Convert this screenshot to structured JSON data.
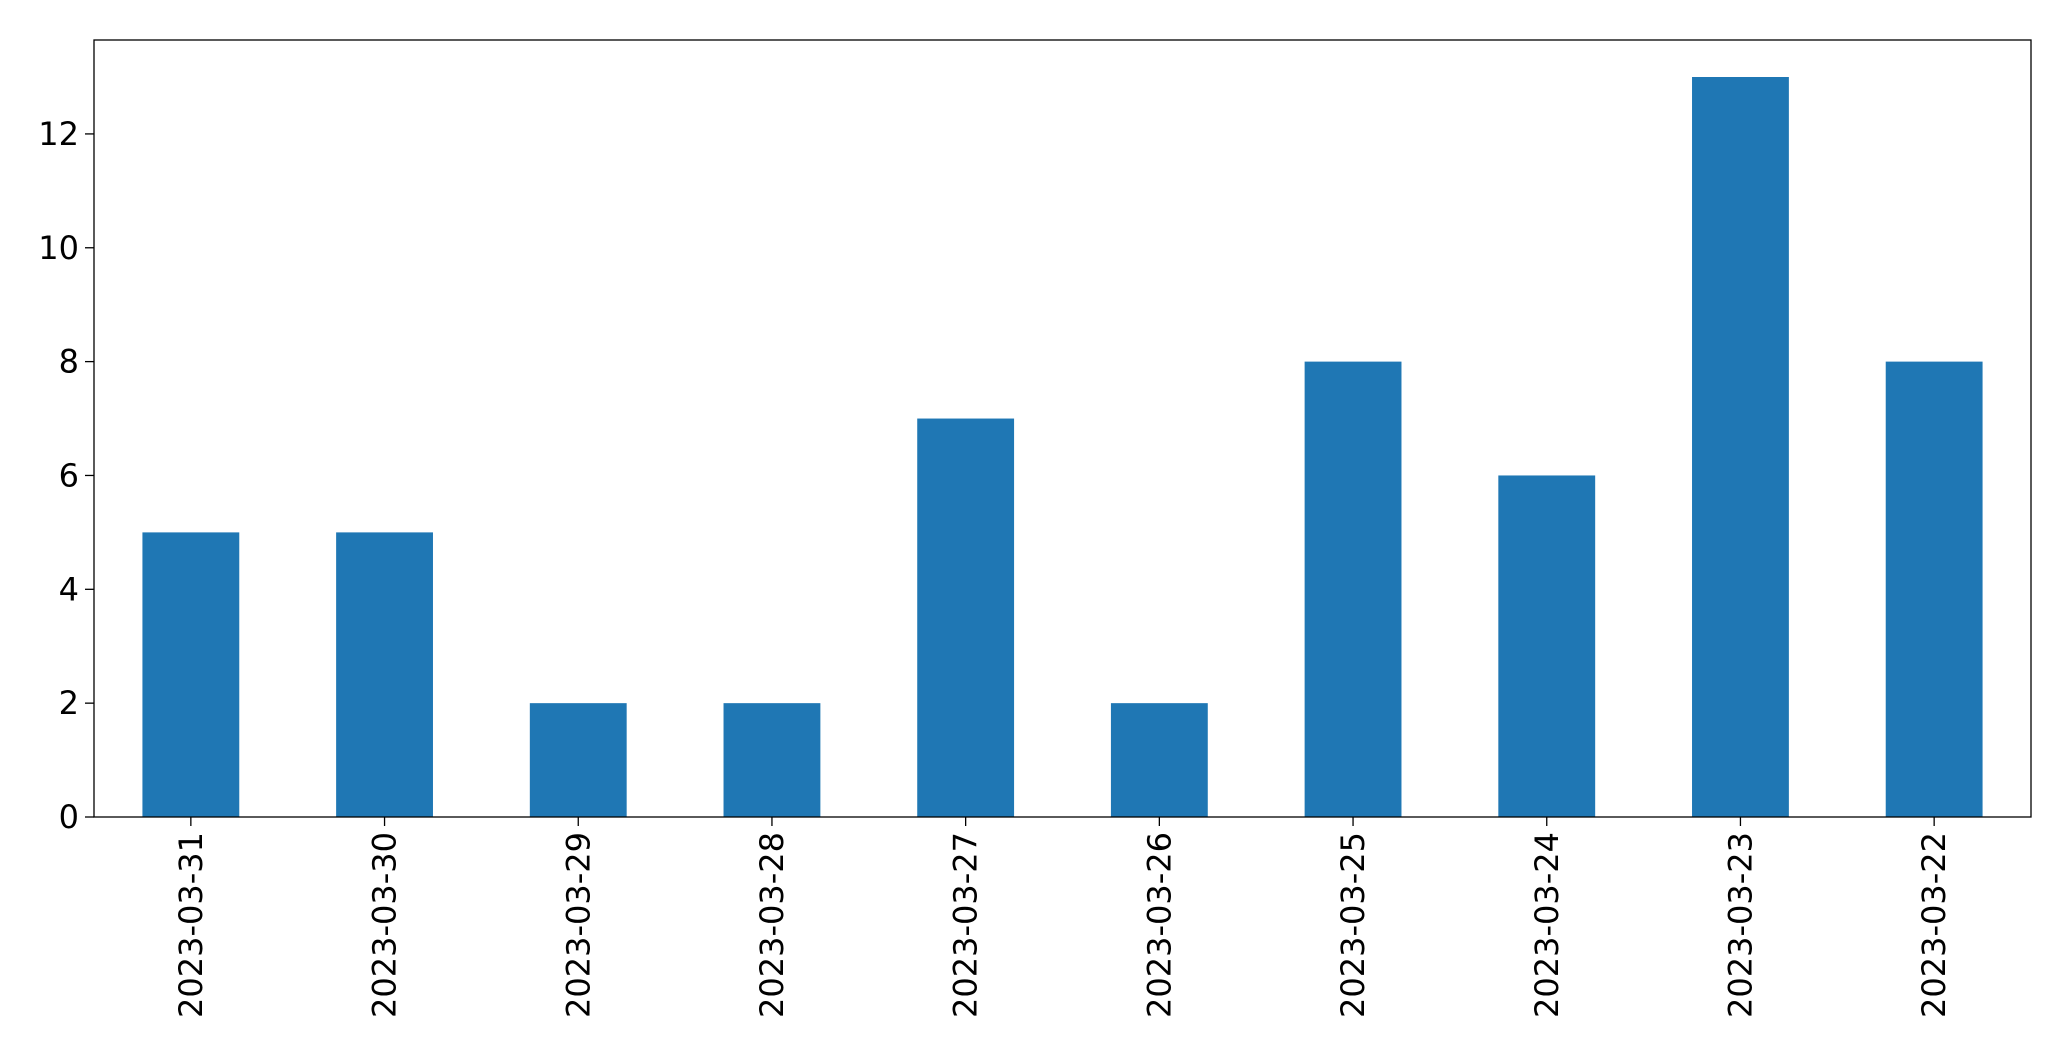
{
  "chart_data": {
    "type": "bar",
    "categories": [
      "2023-03-31",
      "2023-03-30",
      "2023-03-29",
      "2023-03-28",
      "2023-03-27",
      "2023-03-26",
      "2023-03-25",
      "2023-03-24",
      "2023-03-23",
      "2023-03-22"
    ],
    "values": [
      5,
      5,
      2,
      2,
      7,
      2,
      8,
      6,
      13,
      8
    ],
    "color": "#1f77b4",
    "ylim": [
      0,
      13.65
    ],
    "yticks": [
      0,
      2,
      4,
      6,
      8,
      10,
      12
    ],
    "grid": false
  }
}
